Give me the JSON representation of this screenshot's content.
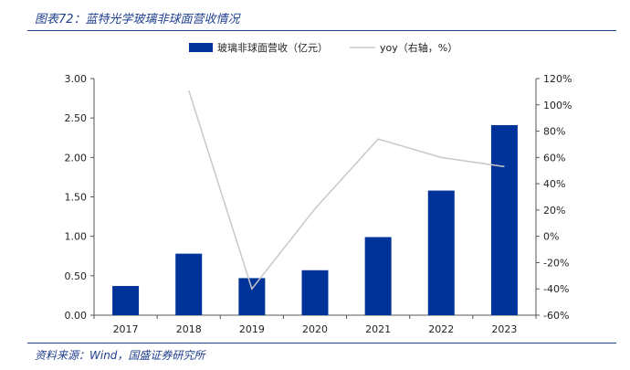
{
  "header": {
    "title": "图表72：蓝特光学玻璃非球面营收情况"
  },
  "footer": {
    "source": "资料来源：Wind，国盛证券研究所"
  },
  "colors": {
    "bar": "#003399",
    "line": "#c8c8c8",
    "rule": "#1f3f8f"
  },
  "chart_data": {
    "type": "bar",
    "categories": [
      "2017",
      "2018",
      "2019",
      "2020",
      "2021",
      "2022",
      "2023"
    ],
    "series": [
      {
        "name": "玻璃非球面营收（亿元）",
        "kind": "bar",
        "axis": "left",
        "values": [
          0.37,
          0.78,
          0.47,
          0.57,
          0.99,
          1.58,
          2.41
        ]
      },
      {
        "name": "yoy（右轴，%）",
        "kind": "line",
        "axis": "right",
        "values": [
          null,
          111,
          -40,
          21,
          74,
          60,
          53
        ]
      }
    ],
    "y_left": {
      "min": 0,
      "max": 3.0,
      "ticks": [
        "0.00",
        "0.50",
        "1.00",
        "1.50",
        "2.00",
        "2.50",
        "3.00"
      ]
    },
    "y_right": {
      "min": -60,
      "max": 120,
      "ticks": [
        "-60%",
        "-40%",
        "-20%",
        "0%",
        "20%",
        "40%",
        "60%",
        "80%",
        "100%",
        "120%"
      ]
    },
    "legend_position": "top-center",
    "grid": false
  }
}
